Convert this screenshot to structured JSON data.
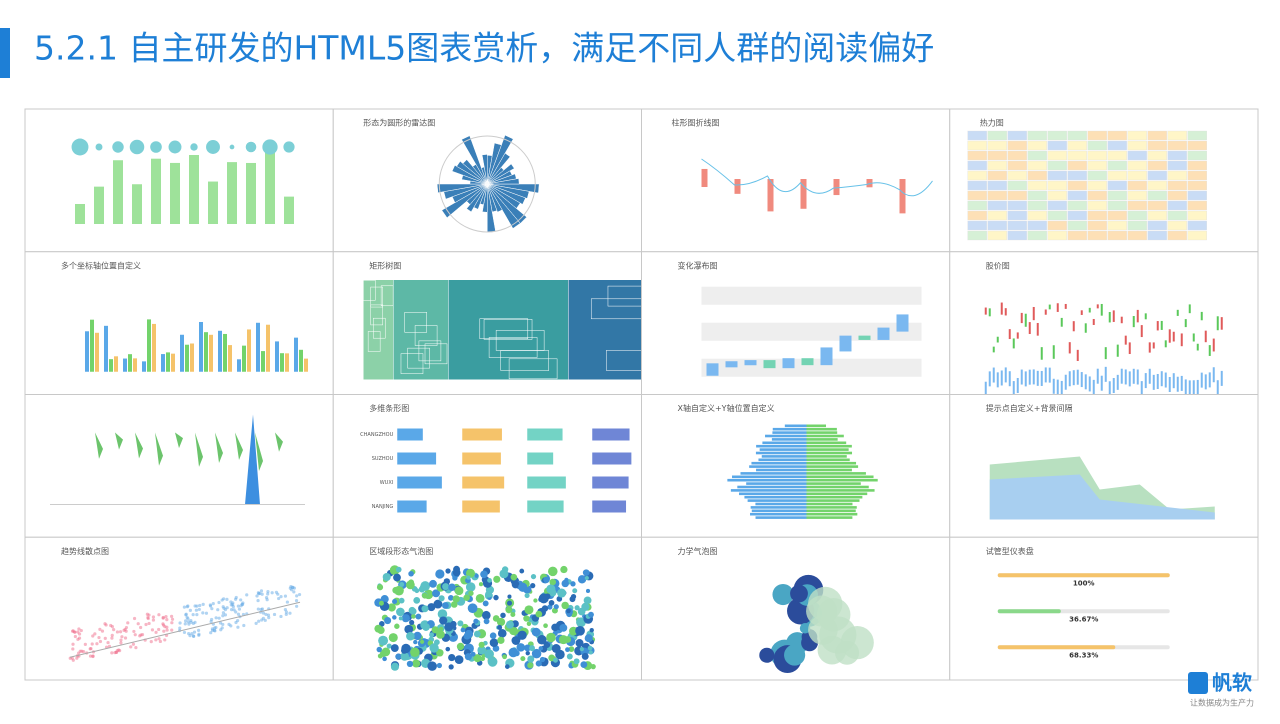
{
  "header": {
    "title": "5.2.1 自主研发的HTML5图表赏析，满足不同人群的阅读偏好"
  },
  "panels": [
    {
      "title": null
    },
    {
      "title": "形态为圆形的雷达图"
    },
    {
      "title": "柱形图折线图"
    },
    {
      "title": "热力图"
    },
    {
      "title": "多个坐标轴位置自定义"
    },
    {
      "title": "矩形树图"
    },
    {
      "title": "变化瀑布图"
    },
    {
      "title": "股价图"
    },
    {
      "title": null
    },
    {
      "title": "多维条形图",
      "categories": [
        "CHANGZHOU",
        "SUZHOU",
        "WUXI",
        "NANJING"
      ]
    },
    {
      "title": "X轴自定义+Y轴位置自定义"
    },
    {
      "title": "提示点自定义+背景间隔"
    },
    {
      "title": "趋势线散点图"
    },
    {
      "title": "区域段形态气泡图"
    },
    {
      "title": "力学气泡图"
    },
    {
      "title": "试管型仪表盘",
      "values": [
        100,
        36.67,
        68.33
      ],
      "value_labels": [
        "100%",
        "36.67%",
        "68.33%"
      ]
    }
  ],
  "logo": {
    "name": "帆软",
    "tagline": "让数据成为生产力"
  }
}
